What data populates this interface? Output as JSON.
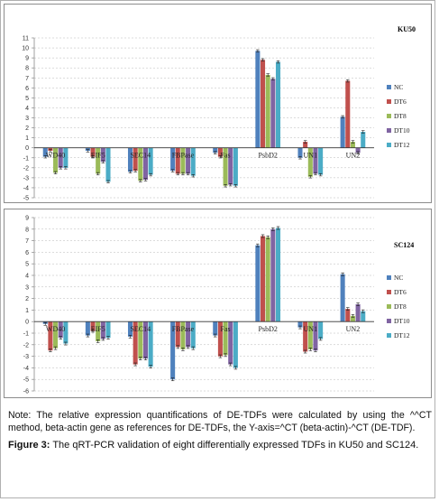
{
  "colors": {
    "NC": "#4f81bd",
    "DT6": "#c0504d",
    "DT8": "#9bbb59",
    "DT10": "#8064a2",
    "DT12": "#4bacc6"
  },
  "chart_data": [
    {
      "type": "bar",
      "title": "KU50",
      "categories": [
        "WD40",
        "EIF5",
        "SEC14",
        "FBPase",
        "Fas",
        "PsbD2",
        "UN1",
        "UN2"
      ],
      "ylim": [
        -5,
        11
      ],
      "yticks": [
        -5,
        -4,
        -3,
        -2,
        -1,
        0,
        1,
        2,
        3,
        4,
        5,
        6,
        7,
        8,
        9,
        10,
        11
      ],
      "legend_position": "right",
      "grid": false,
      "series": [
        {
          "name": "NC",
          "values": [
            -0.9,
            -0.3,
            -2.4,
            -2.3,
            -0.5,
            9.7,
            -1.0,
            3.1
          ]
        },
        {
          "name": "DT6",
          "values": [
            -0.3,
            -0.9,
            -2.3,
            -2.6,
            -0.9,
            8.8,
            0.6,
            6.7
          ]
        },
        {
          "name": "DT8",
          "values": [
            -2.5,
            -2.6,
            -3.3,
            -2.6,
            -3.8,
            7.3,
            -2.9,
            0.6
          ]
        },
        {
          "name": "DT10",
          "values": [
            -2.0,
            -1.4,
            -3.2,
            -2.6,
            -3.7,
            6.9,
            -2.6,
            -0.5
          ]
        },
        {
          "name": "DT12",
          "values": [
            -2.0,
            -3.4,
            -2.7,
            -2.8,
            -3.8,
            8.6,
            -2.7,
            1.6
          ]
        }
      ]
    },
    {
      "type": "bar",
      "title": "SC124",
      "categories": [
        "WD40",
        "EIF5",
        "SEC14",
        "FBPase",
        "Fas",
        "PsbD2",
        "UN1",
        "UN2"
      ],
      "ylim": [
        -6,
        9
      ],
      "yticks": [
        -6,
        -5,
        -4,
        -3,
        -2,
        -1,
        0,
        1,
        2,
        3,
        4,
        5,
        6,
        7,
        8,
        9
      ],
      "legend_position": "right",
      "grid": false,
      "series": [
        {
          "name": "NC",
          "values": [
            -0.2,
            -1.2,
            -1.3,
            -5.0,
            -1.2,
            6.6,
            -0.5,
            4.1
          ]
        },
        {
          "name": "DT6",
          "values": [
            -2.5,
            -0.8,
            -3.7,
            -2.2,
            -3.0,
            7.4,
            -2.6,
            1.1
          ]
        },
        {
          "name": "DT8",
          "values": [
            -2.3,
            -1.7,
            -3.2,
            -2.4,
            -2.9,
            7.3,
            -2.4,
            0.5
          ]
        },
        {
          "name": "DT10",
          "values": [
            -1.4,
            -1.5,
            -3.2,
            -2.2,
            -3.7,
            8.0,
            -2.5,
            1.5
          ]
        },
        {
          "name": "DT12",
          "values": [
            -1.9,
            -1.4,
            -3.9,
            -2.3,
            -4.0,
            8.1,
            -1.5,
            0.9
          ]
        }
      ]
    }
  ],
  "caption": {
    "note": "Note: The relative expression quantifications of DE-TDFs were calculated by using the ^^CT method, beta-actin gene as references for DE-TDFs, the Y-axis=^CT (beta-actin)-^CT (DE-TDF).",
    "figure_label": "Figure 3:",
    "figure_text": "The qRT-PCR validation of eight differentially expressed TDFs in KU50 and SC124."
  }
}
